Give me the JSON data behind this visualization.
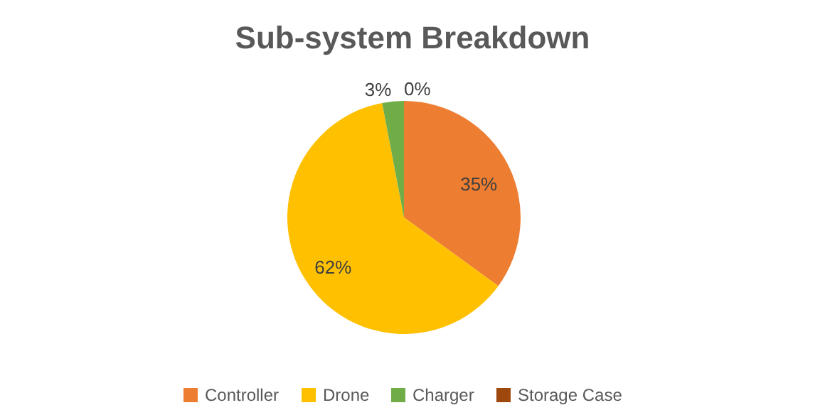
{
  "chart_data": {
    "type": "pie",
    "title": "Sub-system Breakdown",
    "categories": [
      "Controller",
      "Drone",
      "Charger",
      "Storage Case"
    ],
    "values": [
      35,
      62,
      3,
      0
    ],
    "colors": [
      "#ed7d31",
      "#ffc000",
      "#70ad47",
      "#9e480e"
    ],
    "value_labels": [
      "35%",
      "62%",
      "3%",
      "0%"
    ],
    "legend": "bottom"
  }
}
